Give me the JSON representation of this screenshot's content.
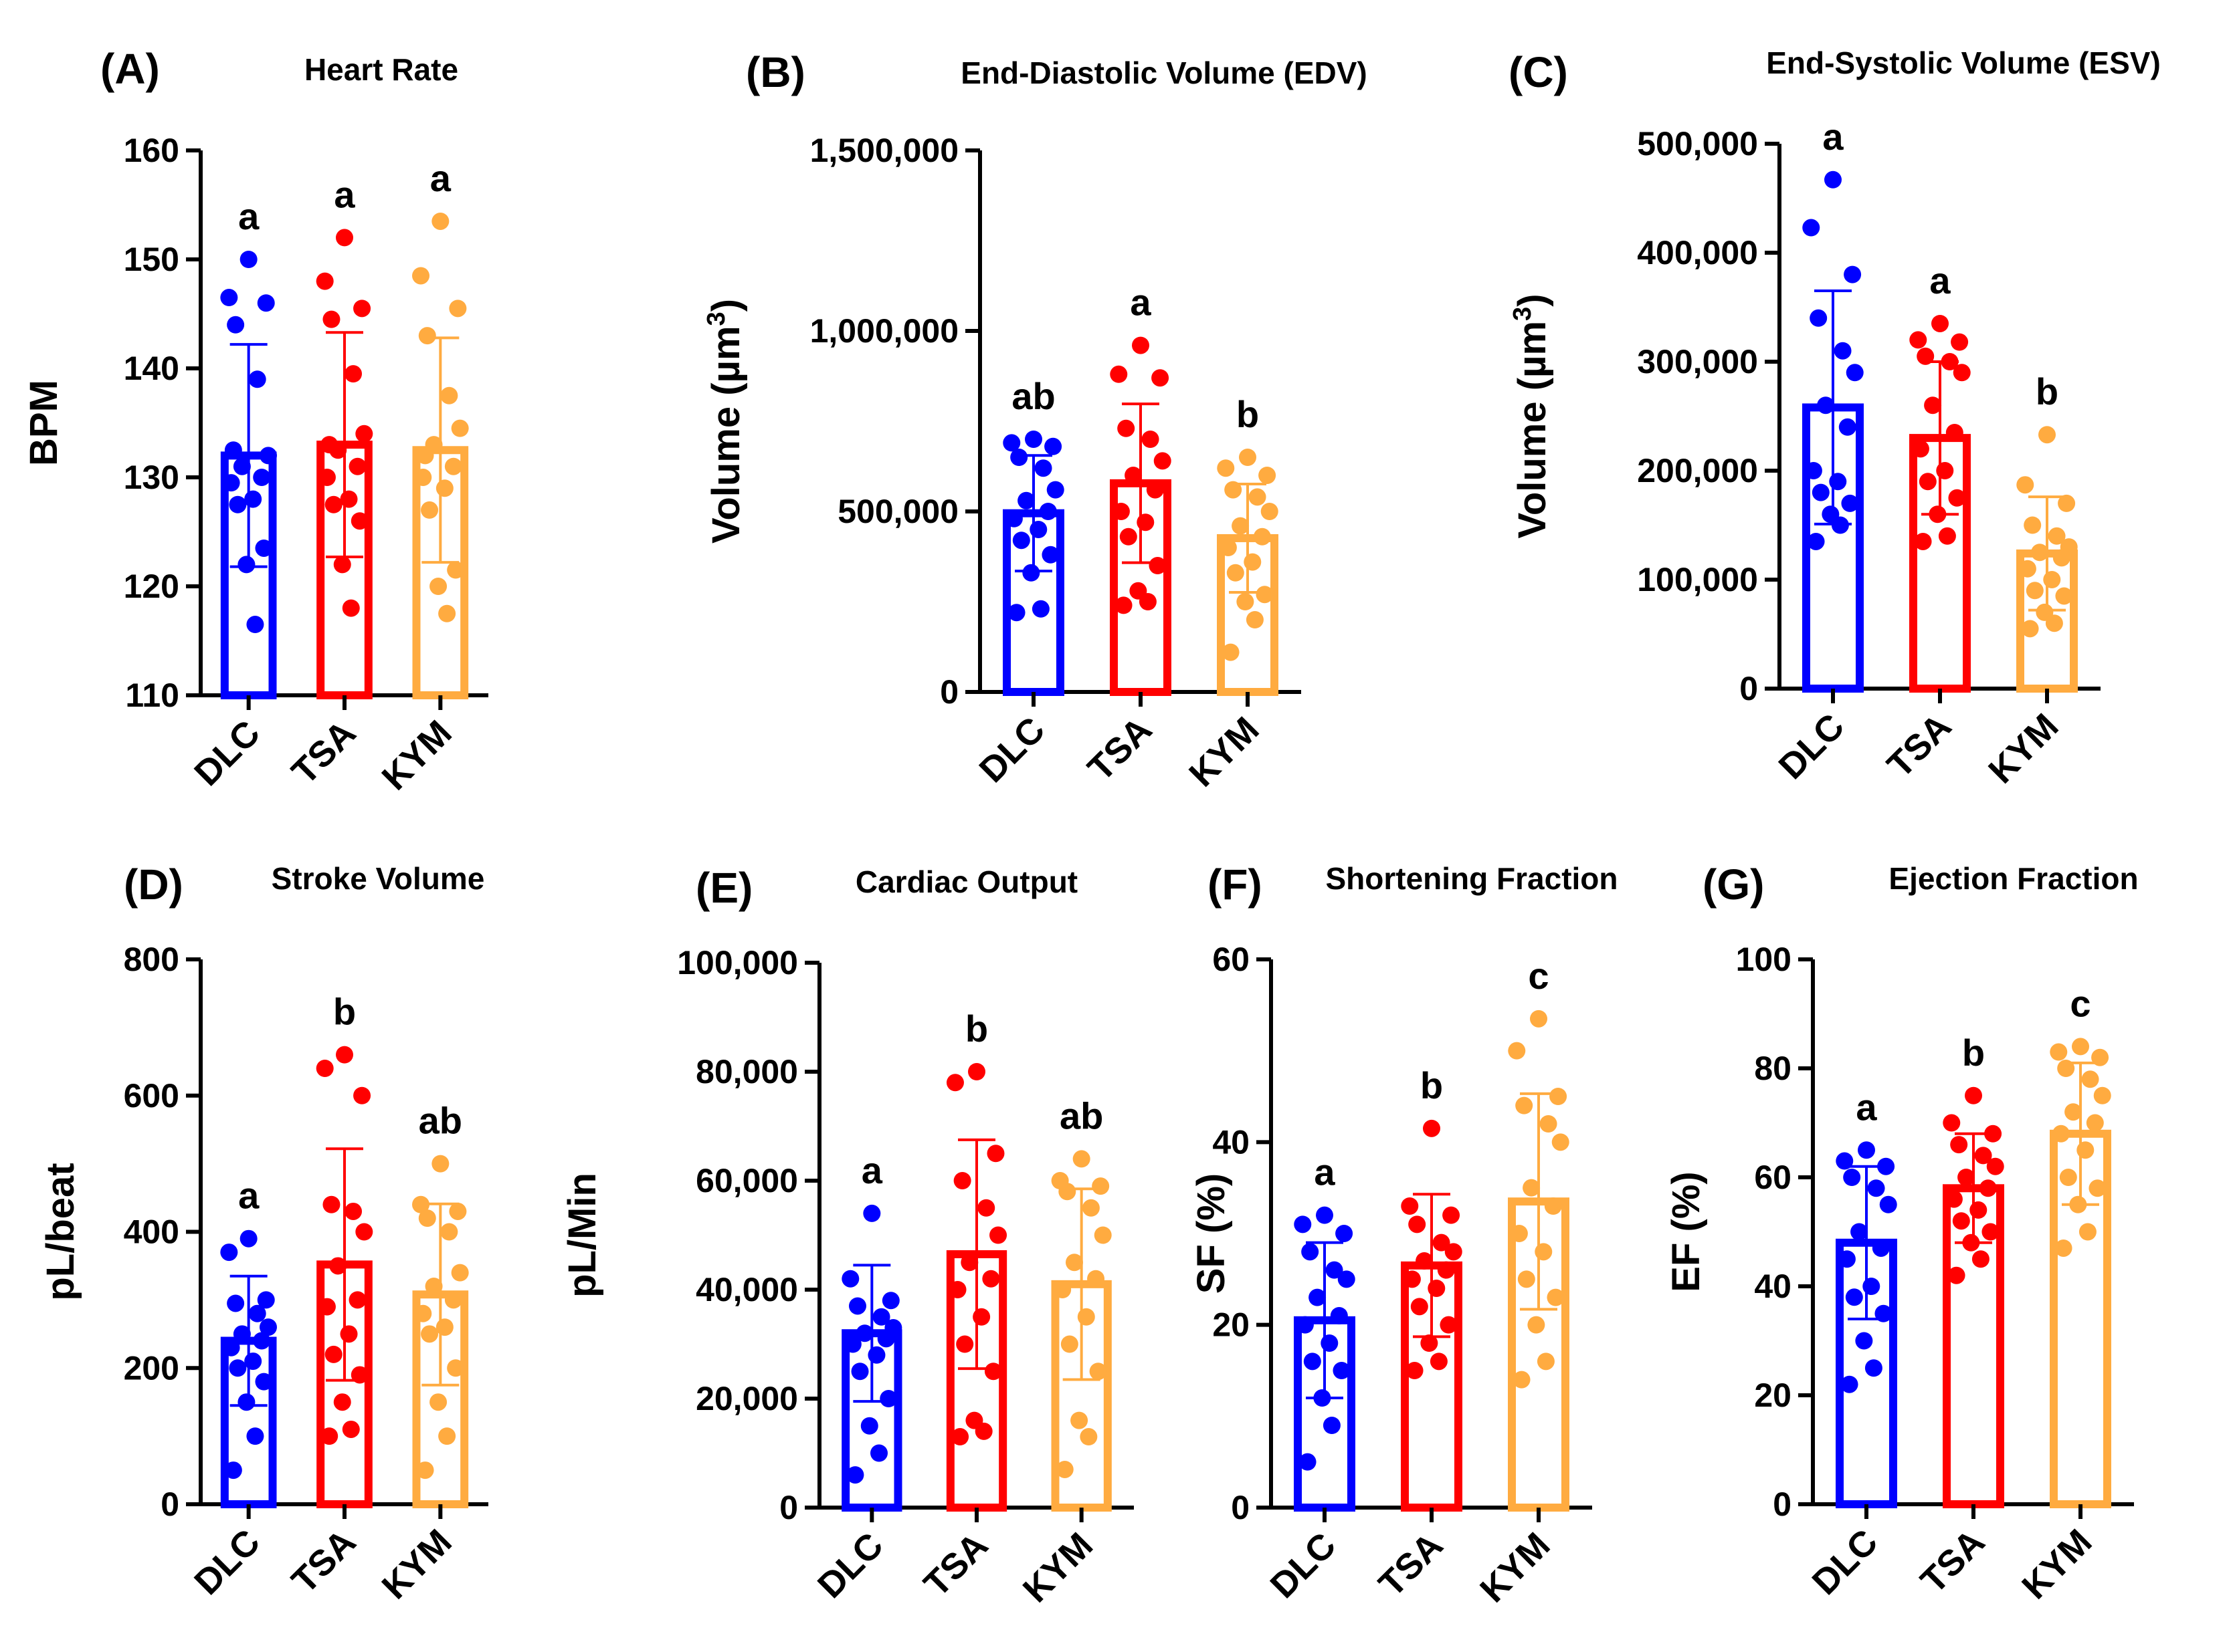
{
  "figure_title": "Cardiac function panels",
  "colors": {
    "DLC": "#0000ff",
    "TSA": "#ff0000",
    "KYM": "#ffab40"
  },
  "chart_data": [
    {
      "type": "bar",
      "panel_label": "(A)",
      "title": "Heart Rate",
      "title_sup": "",
      "xlabel": "",
      "ylabel": "BPM",
      "ylabel_sup": "",
      "ylim": [
        110,
        160
      ],
      "ticks": [
        110,
        120,
        130,
        140,
        150,
        160
      ],
      "tick_labels": [
        "110",
        "120",
        "130",
        "140",
        "150",
        "160"
      ],
      "categories": [
        "DLC",
        "TSA",
        "KYM"
      ],
      "values": [
        132,
        133,
        132.5
      ],
      "errors": [
        10.2,
        10.3,
        10.3
      ],
      "significance": [
        "a",
        "a",
        "a"
      ],
      "points": [
        [
          150,
          146.5,
          146,
          144,
          139,
          132,
          131,
          130,
          129.5,
          128,
          127.5,
          123.5,
          122,
          116.5,
          132.5
        ],
        [
          152,
          148,
          145.5,
          144.5,
          139.5,
          134,
          132.5,
          131,
          130,
          128,
          127.5,
          126,
          122,
          118,
          133
        ],
        [
          153.5,
          148.5,
          145.5,
          143,
          137.5,
          134.5,
          133,
          131,
          130,
          129,
          127,
          121.5,
          120,
          117.5,
          132
        ]
      ]
    },
    {
      "type": "bar",
      "panel_label": "(B)",
      "title": "End-Diastolic Volume (EDV)",
      "title_sup": "",
      "xlabel": "",
      "ylabel": "Volume (µm",
      "ylabel_sup": "3",
      "ylim": [
        0,
        1500000
      ],
      "ticks": [
        0,
        500000,
        1000000,
        1500000
      ],
      "tick_labels": [
        "0",
        "500,000",
        "1,000,000",
        "1,500,000"
      ],
      "categories": [
        "DLC",
        "TSA",
        "KYM"
      ],
      "values": [
        495000,
        578000,
        426000
      ],
      "errors": [
        160000,
        220000,
        150000
      ],
      "significance": [
        "ab",
        "a",
        "b"
      ],
      "points": [
        [
          700000,
          690000,
          680000,
          650000,
          620000,
          560000,
          530000,
          500000,
          480000,
          450000,
          420000,
          380000,
          330000,
          230000,
          220000
        ],
        [
          960000,
          880000,
          870000,
          730000,
          700000,
          640000,
          600000,
          560000,
          500000,
          470000,
          430000,
          350000,
          280000,
          250000,
          240000
        ],
        [
          650000,
          620000,
          600000,
          560000,
          540000,
          500000,
          460000,
          430000,
          400000,
          360000,
          330000,
          270000,
          250000,
          200000,
          110000
        ]
      ]
    },
    {
      "type": "bar",
      "panel_label": "(C)",
      "title": "End-Systolic Volume (ESV)",
      "title_sup": "",
      "xlabel": "",
      "ylabel": "Volume (µm",
      "ylabel_sup": "3",
      "ylim": [
        0,
        500000
      ],
      "ticks": [
        0,
        100000,
        200000,
        300000,
        400000,
        500000
      ],
      "tick_labels": [
        "0",
        "100,000",
        "200,000",
        "300,000",
        "400,000",
        "500,000"
      ],
      "categories": [
        "DLC",
        "TSA",
        "KYM"
      ],
      "values": [
        258000,
        230000,
        124000
      ],
      "errors": [
        107000,
        70000,
        52000
      ],
      "significance": [
        "a",
        "a",
        "b"
      ],
      "points": [
        [
          467000,
          423000,
          380000,
          340000,
          310000,
          290000,
          260000,
          240000,
          200000,
          190000,
          180000,
          170000,
          160000,
          150000,
          135000
        ],
        [
          335000,
          320000,
          318000,
          305000,
          300000,
          290000,
          260000,
          235000,
          220000,
          200000,
          190000,
          175000,
          160000,
          140000,
          135000
        ],
        [
          233000,
          187000,
          170000,
          150000,
          140000,
          130000,
          125000,
          120000,
          110000,
          100000,
          90000,
          85000,
          70000,
          60000,
          55000
        ]
      ]
    },
    {
      "type": "bar",
      "panel_label": "(D)",
      "title": "Stroke Volume",
      "title_sup": "",
      "xlabel": "",
      "ylabel": "pL/beat",
      "ylabel_sup": "",
      "ylim": [
        0,
        800
      ],
      "ticks": [
        0,
        200,
        400,
        600,
        800
      ],
      "tick_labels": [
        "0",
        "200",
        "400",
        "600",
        "800"
      ],
      "categories": [
        "DLC",
        "TSA",
        "KYM"
      ],
      "values": [
        240,
        352,
        308
      ],
      "errors": [
        95,
        170,
        133
      ],
      "significance": [
        "a",
        "b",
        "ab"
      ],
      "points": [
        [
          390,
          370,
          300,
          295,
          280,
          260,
          250,
          240,
          230,
          210,
          200,
          180,
          150,
          100,
          50
        ],
        [
          660,
          640,
          600,
          440,
          430,
          400,
          350,
          300,
          290,
          250,
          220,
          190,
          150,
          110,
          100
        ],
        [
          500,
          440,
          430,
          420,
          400,
          340,
          320,
          300,
          280,
          260,
          250,
          200,
          150,
          100,
          50
        ]
      ]
    },
    {
      "type": "bar",
      "panel_label": "(E)",
      "title": "Cardiac Output",
      "title_sup": "",
      "xlabel": "",
      "ylabel": "pL/Min",
      "ylabel_sup": "",
      "ylim": [
        0,
        100000
      ],
      "ticks": [
        0,
        20000,
        40000,
        60000,
        80000,
        100000
      ],
      "tick_labels": [
        "0",
        "20,000",
        "40,000",
        "60,000",
        "80,000",
        "100,000"
      ],
      "categories": [
        "DLC",
        "TSA",
        "KYM"
      ],
      "values": [
        32000,
        46500,
        41000
      ],
      "errors": [
        12500,
        21000,
        17500
      ],
      "significance": [
        "a",
        "b",
        "ab"
      ],
      "points": [
        [
          54000,
          42000,
          38000,
          37000,
          35000,
          33000,
          32000,
          31000,
          30000,
          28000,
          25000,
          20000,
          15000,
          10000,
          6000
        ],
        [
          80000,
          78000,
          65000,
          60000,
          55000,
          50000,
          45000,
          42000,
          40000,
          35000,
          30000,
          25000,
          16000,
          14000,
          13000
        ],
        [
          64000,
          60000,
          59000,
          58000,
          55000,
          50000,
          45000,
          42000,
          40000,
          35000,
          30000,
          25000,
          16000,
          13000,
          7000
        ]
      ]
    },
    {
      "type": "bar",
      "panel_label": "(F)",
      "title": "Shortening Fraction",
      "title_sup": "",
      "xlabel": "",
      "ylabel": "SF (%)",
      "ylabel_sup": "",
      "ylim": [
        0,
        60
      ],
      "ticks": [
        0,
        20,
        40,
        60
      ],
      "tick_labels": [
        "0",
        "20",
        "40",
        "60"
      ],
      "categories": [
        "DLC",
        "TSA",
        "KYM"
      ],
      "values": [
        20.5,
        26.5,
        33.5
      ],
      "errors": [
        8.5,
        7.8,
        11.8
      ],
      "significance": [
        "a",
        "b",
        "c"
      ],
      "points": [
        [
          32,
          31,
          30,
          28,
          26,
          25,
          23,
          21,
          20,
          18,
          16,
          15,
          12,
          9,
          5
        ],
        [
          41.5,
          33,
          32,
          31,
          29,
          28,
          27,
          26,
          25,
          24,
          22,
          20,
          18,
          16,
          15
        ],
        [
          53.5,
          50,
          45,
          44,
          42,
          40,
          35,
          33,
          30,
          28,
          25,
          23,
          20,
          16,
          14
        ]
      ]
    },
    {
      "type": "bar",
      "panel_label": "(G)",
      "title": "Ejection Fraction",
      "title_sup": "",
      "xlabel": "",
      "ylabel": "EF (%)",
      "ylabel_sup": "",
      "ylim": [
        0,
        100
      ],
      "ticks": [
        0,
        20,
        40,
        60,
        80,
        100
      ],
      "tick_labels": [
        "0",
        "20",
        "40",
        "60",
        "80",
        "100"
      ],
      "categories": [
        "DLC",
        "TSA",
        "KYM"
      ],
      "values": [
        48,
        58,
        68
      ],
      "errors": [
        14,
        10,
        13
      ],
      "significance": [
        "a",
        "b",
        "c"
      ],
      "points": [
        [
          65,
          63,
          62,
          60,
          58,
          55,
          50,
          47,
          45,
          40,
          38,
          35,
          30,
          25,
          22
        ],
        [
          75,
          70,
          68,
          66,
          64,
          62,
          60,
          58,
          56,
          54,
          52,
          50,
          48,
          45,
          42
        ],
        [
          84,
          83,
          82,
          80,
          78,
          75,
          72,
          70,
          68,
          65,
          60,
          58,
          55,
          50,
          47
        ]
      ]
    }
  ]
}
